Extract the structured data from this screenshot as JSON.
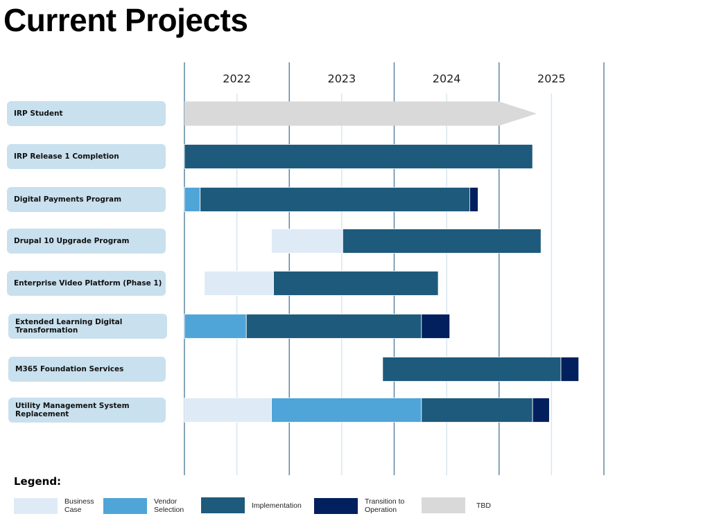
{
  "chart_data": {
    "type": "gantt",
    "title": "Current Projects",
    "x_unit": "year",
    "xlim": [
      2022,
      2026
    ],
    "year_labels": [
      "2022",
      "2023",
      "2024",
      "2025"
    ],
    "grid": true,
    "phases": {
      "business_case": {
        "label": "Business\nCase",
        "color": "#deebf6"
      },
      "vendor_selection": {
        "label": "Vendor\nSelection",
        "color": "#4fa5d8"
      },
      "implementation": {
        "label": "Implementation",
        "color": "#1e5a7c"
      },
      "transition": {
        "label": "Transition to\nOperation",
        "color": "#02205e"
      },
      "tbd": {
        "label": "TBD",
        "color": "#d9d9d9"
      }
    },
    "projects": [
      {
        "name": "IRP Student",
        "segments": [
          {
            "phase": "tbd",
            "start": 2022.0,
            "end": 2025.0,
            "arrow_to": 2025.36
          }
        ]
      },
      {
        "name": "IRP Release 1 Completion",
        "segments": [
          {
            "phase": "implementation",
            "start": 2022.0,
            "end": 2025.32
          }
        ]
      },
      {
        "name": "Digital Payments Program",
        "segments": [
          {
            "phase": "vendor_selection",
            "start": 2022.0,
            "end": 2022.15
          },
          {
            "phase": "implementation",
            "start": 2022.15,
            "end": 2024.72
          },
          {
            "phase": "transition",
            "start": 2024.72,
            "end": 2024.8
          }
        ]
      },
      {
        "name": "Drupal 10 Upgrade Program",
        "segments": [
          {
            "phase": "business_case",
            "start": 2022.83,
            "end": 2023.51
          },
          {
            "phase": "implementation",
            "start": 2023.51,
            "end": 2025.4
          }
        ]
      },
      {
        "name": "Enterprise Video Platform (Phase 1)",
        "segments": [
          {
            "phase": "business_case",
            "start": 2022.19,
            "end": 2022.85
          },
          {
            "phase": "implementation",
            "start": 2022.85,
            "end": 2024.42
          }
        ]
      },
      {
        "name": "Extended Learning Digital Transformation",
        "segments": [
          {
            "phase": "vendor_selection",
            "start": 2022.0,
            "end": 2022.59
          },
          {
            "phase": "implementation",
            "start": 2022.59,
            "end": 2024.26
          },
          {
            "phase": "transition",
            "start": 2024.26,
            "end": 2024.53
          }
        ]
      },
      {
        "name": "M365 Foundation Services",
        "segments": [
          {
            "phase": "implementation",
            "start": 2023.89,
            "end": 2025.59
          },
          {
            "phase": "transition",
            "start": 2025.59,
            "end": 2025.76
          }
        ]
      },
      {
        "name": "Utility Management System Replacement",
        "segments": [
          {
            "phase": "business_case",
            "start": 2022.0,
            "end": 2022.83
          },
          {
            "phase": "vendor_selection",
            "start": 2022.83,
            "end": 2024.26
          },
          {
            "phase": "implementation",
            "start": 2024.26,
            "end": 2025.32
          },
          {
            "phase": "transition",
            "start": 2025.32,
            "end": 2025.48
          }
        ]
      }
    ],
    "legend": {
      "title": "Legend:",
      "placement": "bottom-left",
      "order": [
        "business_case",
        "vendor_selection",
        "implementation",
        "transition",
        "tbd"
      ]
    }
  }
}
